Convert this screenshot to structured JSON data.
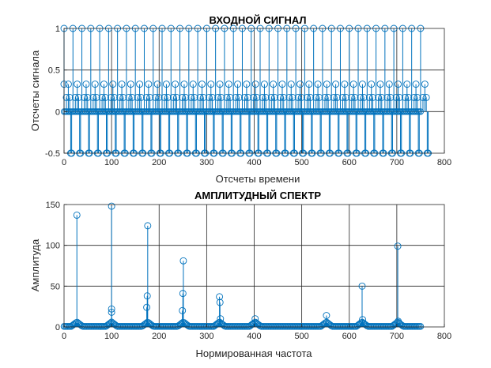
{
  "chart_data": [
    {
      "type": "stem",
      "title": "ВХОДНОЙ СИГНАЛ",
      "xlabel": "Отсчеты времени",
      "ylabel": "Отсчеты сигнала",
      "xlim": [
        0,
        800
      ],
      "ylim": [
        -0.5,
        1
      ],
      "xticks": [
        0,
        100,
        200,
        300,
        400,
        500,
        600,
        700,
        800
      ],
      "yticks": [
        -0.5,
        0,
        0.5,
        1
      ],
      "ytick_labels": [
        "-0.5",
        "0",
        "0.5",
        "1"
      ],
      "grid": true,
      "color": "#0072bd",
      "n_samples": 750,
      "pattern": "periodic pulses with period ≈ 18 samples; values 1, 0.33, 0.17, 0, -0.5",
      "pulse_peaks": {
        "value_1_at": [
          0,
          18,
          37,
          56,
          75,
          93,
          112,
          131,
          150,
          168,
          187,
          206,
          225,
          243,
          262,
          281,
          300,
          318,
          337,
          356,
          375,
          393,
          412,
          431,
          450,
          468,
          487,
          506,
          525,
          543,
          562,
          581,
          600,
          618,
          637,
          656,
          675,
          693,
          712,
          731,
          750
        ],
        "value_0.33_period": 18.75,
        "value_-0.5_period": 18.75
      }
    },
    {
      "type": "stem",
      "title": "АМПЛИТУДНЫЙ СПЕКТР",
      "xlabel": "Нормированная частота",
      "ylabel": "Амплитуда",
      "xlim": [
        0,
        800
      ],
      "ylim": [
        0,
        150
      ],
      "xticks": [
        0,
        100,
        200,
        300,
        400,
        500,
        600,
        700,
        800
      ],
      "yticks": [
        0,
        50,
        100,
        150
      ],
      "grid": true,
      "color": "#0072bd",
      "n_samples": 750,
      "peaks": [
        {
          "x": 27,
          "y": 137
        },
        {
          "x": 100,
          "y": 148
        },
        {
          "x": 176,
          "y": 124
        },
        {
          "x": 251,
          "y": 81
        },
        {
          "x": 327,
          "y": 37
        },
        {
          "x": 402,
          "y": 10
        },
        {
          "x": 552,
          "y": 14
        },
        {
          "x": 627,
          "y": 50
        },
        {
          "x": 702,
          "y": 99
        }
      ],
      "side_values": [
        {
          "x": 100,
          "y": 22
        },
        {
          "x": 100,
          "y": 18
        },
        {
          "x": 175,
          "y": 38
        },
        {
          "x": 174,
          "y": 24
        },
        {
          "x": 250,
          "y": 41
        },
        {
          "x": 249,
          "y": 20
        },
        {
          "x": 328,
          "y": 30
        },
        {
          "x": 329,
          "y": 10
        },
        {
          "x": 628,
          "y": 9
        },
        {
          "x": 703,
          "y": 7
        }
      ]
    }
  ]
}
